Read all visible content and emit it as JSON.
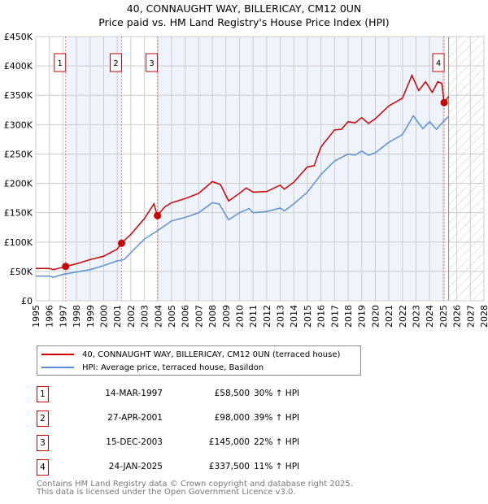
{
  "chart_data": {
    "type": "line",
    "title": "40, CONNAUGHT WAY, BILLERICAY, CM12 0UN",
    "subtitle": "Price paid vs. HM Land Registry's House Price Index (HPI)",
    "xlim": [
      1995,
      2028
    ],
    "ylim": [
      0,
      450000
    ],
    "yticks": [
      0,
      50000,
      100000,
      150000,
      200000,
      250000,
      300000,
      350000,
      400000,
      450000
    ],
    "ytick_labels": [
      "£0",
      "£50K",
      "£100K",
      "£150K",
      "£200K",
      "£250K",
      "£300K",
      "£350K",
      "£400K",
      "£450K"
    ],
    "xticks": [
      "1995",
      "1996",
      "1997",
      "1998",
      "1999",
      "2000",
      "2001",
      "2002",
      "2003",
      "2004",
      "2005",
      "2006",
      "2007",
      "2008",
      "2009",
      "2010",
      "2011",
      "2012",
      "2013",
      "2014",
      "2015",
      "2016",
      "2017",
      "2018",
      "2019",
      "2020",
      "2021",
      "2022",
      "2023",
      "2024",
      "2025",
      "2026",
      "2027",
      "2028"
    ],
    "grid": true,
    "data_end": 2025.4,
    "series": [
      {
        "name": "40, CONNAUGHT WAY, BILLERICAY, CM12 0UN (terraced house)",
        "color": "#cc0000",
        "x": [
          1995,
          1996,
          1996.3,
          1997,
          1997.2,
          1998,
          1999,
          2000,
          2001,
          2001.3,
          2002,
          2003,
          2003.7,
          2003.95,
          2004.5,
          2005,
          2006,
          2007,
          2008,
          2008.6,
          2009.2,
          2010,
          2010.5,
          2011,
          2012,
          2013,
          2013.3,
          2014,
          2015,
          2015.5,
          2016,
          2017,
          2017.5,
          2018,
          2018.5,
          2019,
          2019.5,
          2020,
          2021,
          2022,
          2022.7,
          2023.2,
          2023.7,
          2024.2,
          2024.6,
          2024.9,
          2025.07,
          2025.4
        ],
        "y": [
          55000,
          55000,
          53000,
          57000,
          58500,
          63000,
          70000,
          76000,
          88000,
          98000,
          113000,
          140000,
          165000,
          145000,
          160000,
          167000,
          174000,
          183000,
          203000,
          198000,
          170000,
          183000,
          192000,
          185000,
          186000,
          197000,
          190000,
          202000,
          228000,
          230000,
          262000,
          291000,
          292000,
          305000,
          303000,
          312000,
          302000,
          310000,
          332000,
          345000,
          384000,
          358000,
          373000,
          355000,
          373000,
          370000,
          337500,
          348000
        ]
      },
      {
        "name": "HPI: Average price, terraced house, Basildon",
        "color": "#5b8fd4",
        "x": [
          1995,
          1996,
          1996.3,
          1997,
          1998,
          1999,
          2000,
          2001,
          2001.5,
          2002,
          2003,
          2004,
          2005,
          2006,
          2007,
          2008,
          2008.5,
          2009.2,
          2010,
          2010.7,
          2011,
          2012,
          2013,
          2013.3,
          2014,
          2015,
          2016,
          2017,
          2018,
          2018.5,
          2019,
          2019.5,
          2020,
          2021,
          2022,
          2022.8,
          2023.5,
          2024,
          2024.5,
          2025,
          2025.4
        ],
        "y": [
          42000,
          42000,
          40000,
          45000,
          49000,
          53000,
          60000,
          68000,
          70000,
          82000,
          105000,
          120000,
          136000,
          142000,
          150000,
          167000,
          165000,
          138000,
          150000,
          157000,
          150000,
          152000,
          158000,
          153000,
          165000,
          185000,
          215000,
          238000,
          250000,
          248000,
          255000,
          248000,
          252000,
          270000,
          283000,
          315000,
          293000,
          305000,
          292000,
          305000,
          314000
        ]
      }
    ],
    "sales": [
      {
        "n": "1",
        "x": 1997.2,
        "y": 58500,
        "date": "14-MAR-1997",
        "price": "£58,500",
        "hpi": "30% ↑ HPI"
      },
      {
        "n": "2",
        "x": 2001.32,
        "y": 98000,
        "date": "27-APR-2001",
        "price": "£98,000",
        "hpi": "39% ↑ HPI"
      },
      {
        "n": "3",
        "x": 2003.96,
        "y": 145000,
        "date": "15-DEC-2003",
        "price": "£145,000",
        "hpi": "22% ↑ HPI"
      },
      {
        "n": "4",
        "x": 2025.07,
        "y": 337500,
        "date": "24-JAN-2025",
        "price": "£337,500",
        "hpi": "11% ↑ HPI"
      }
    ]
  },
  "footer": {
    "line1": "Contains HM Land Registry data © Crown copyright and database right 2025.",
    "line2": "This data is licensed under the Open Government Licence v3.0."
  }
}
